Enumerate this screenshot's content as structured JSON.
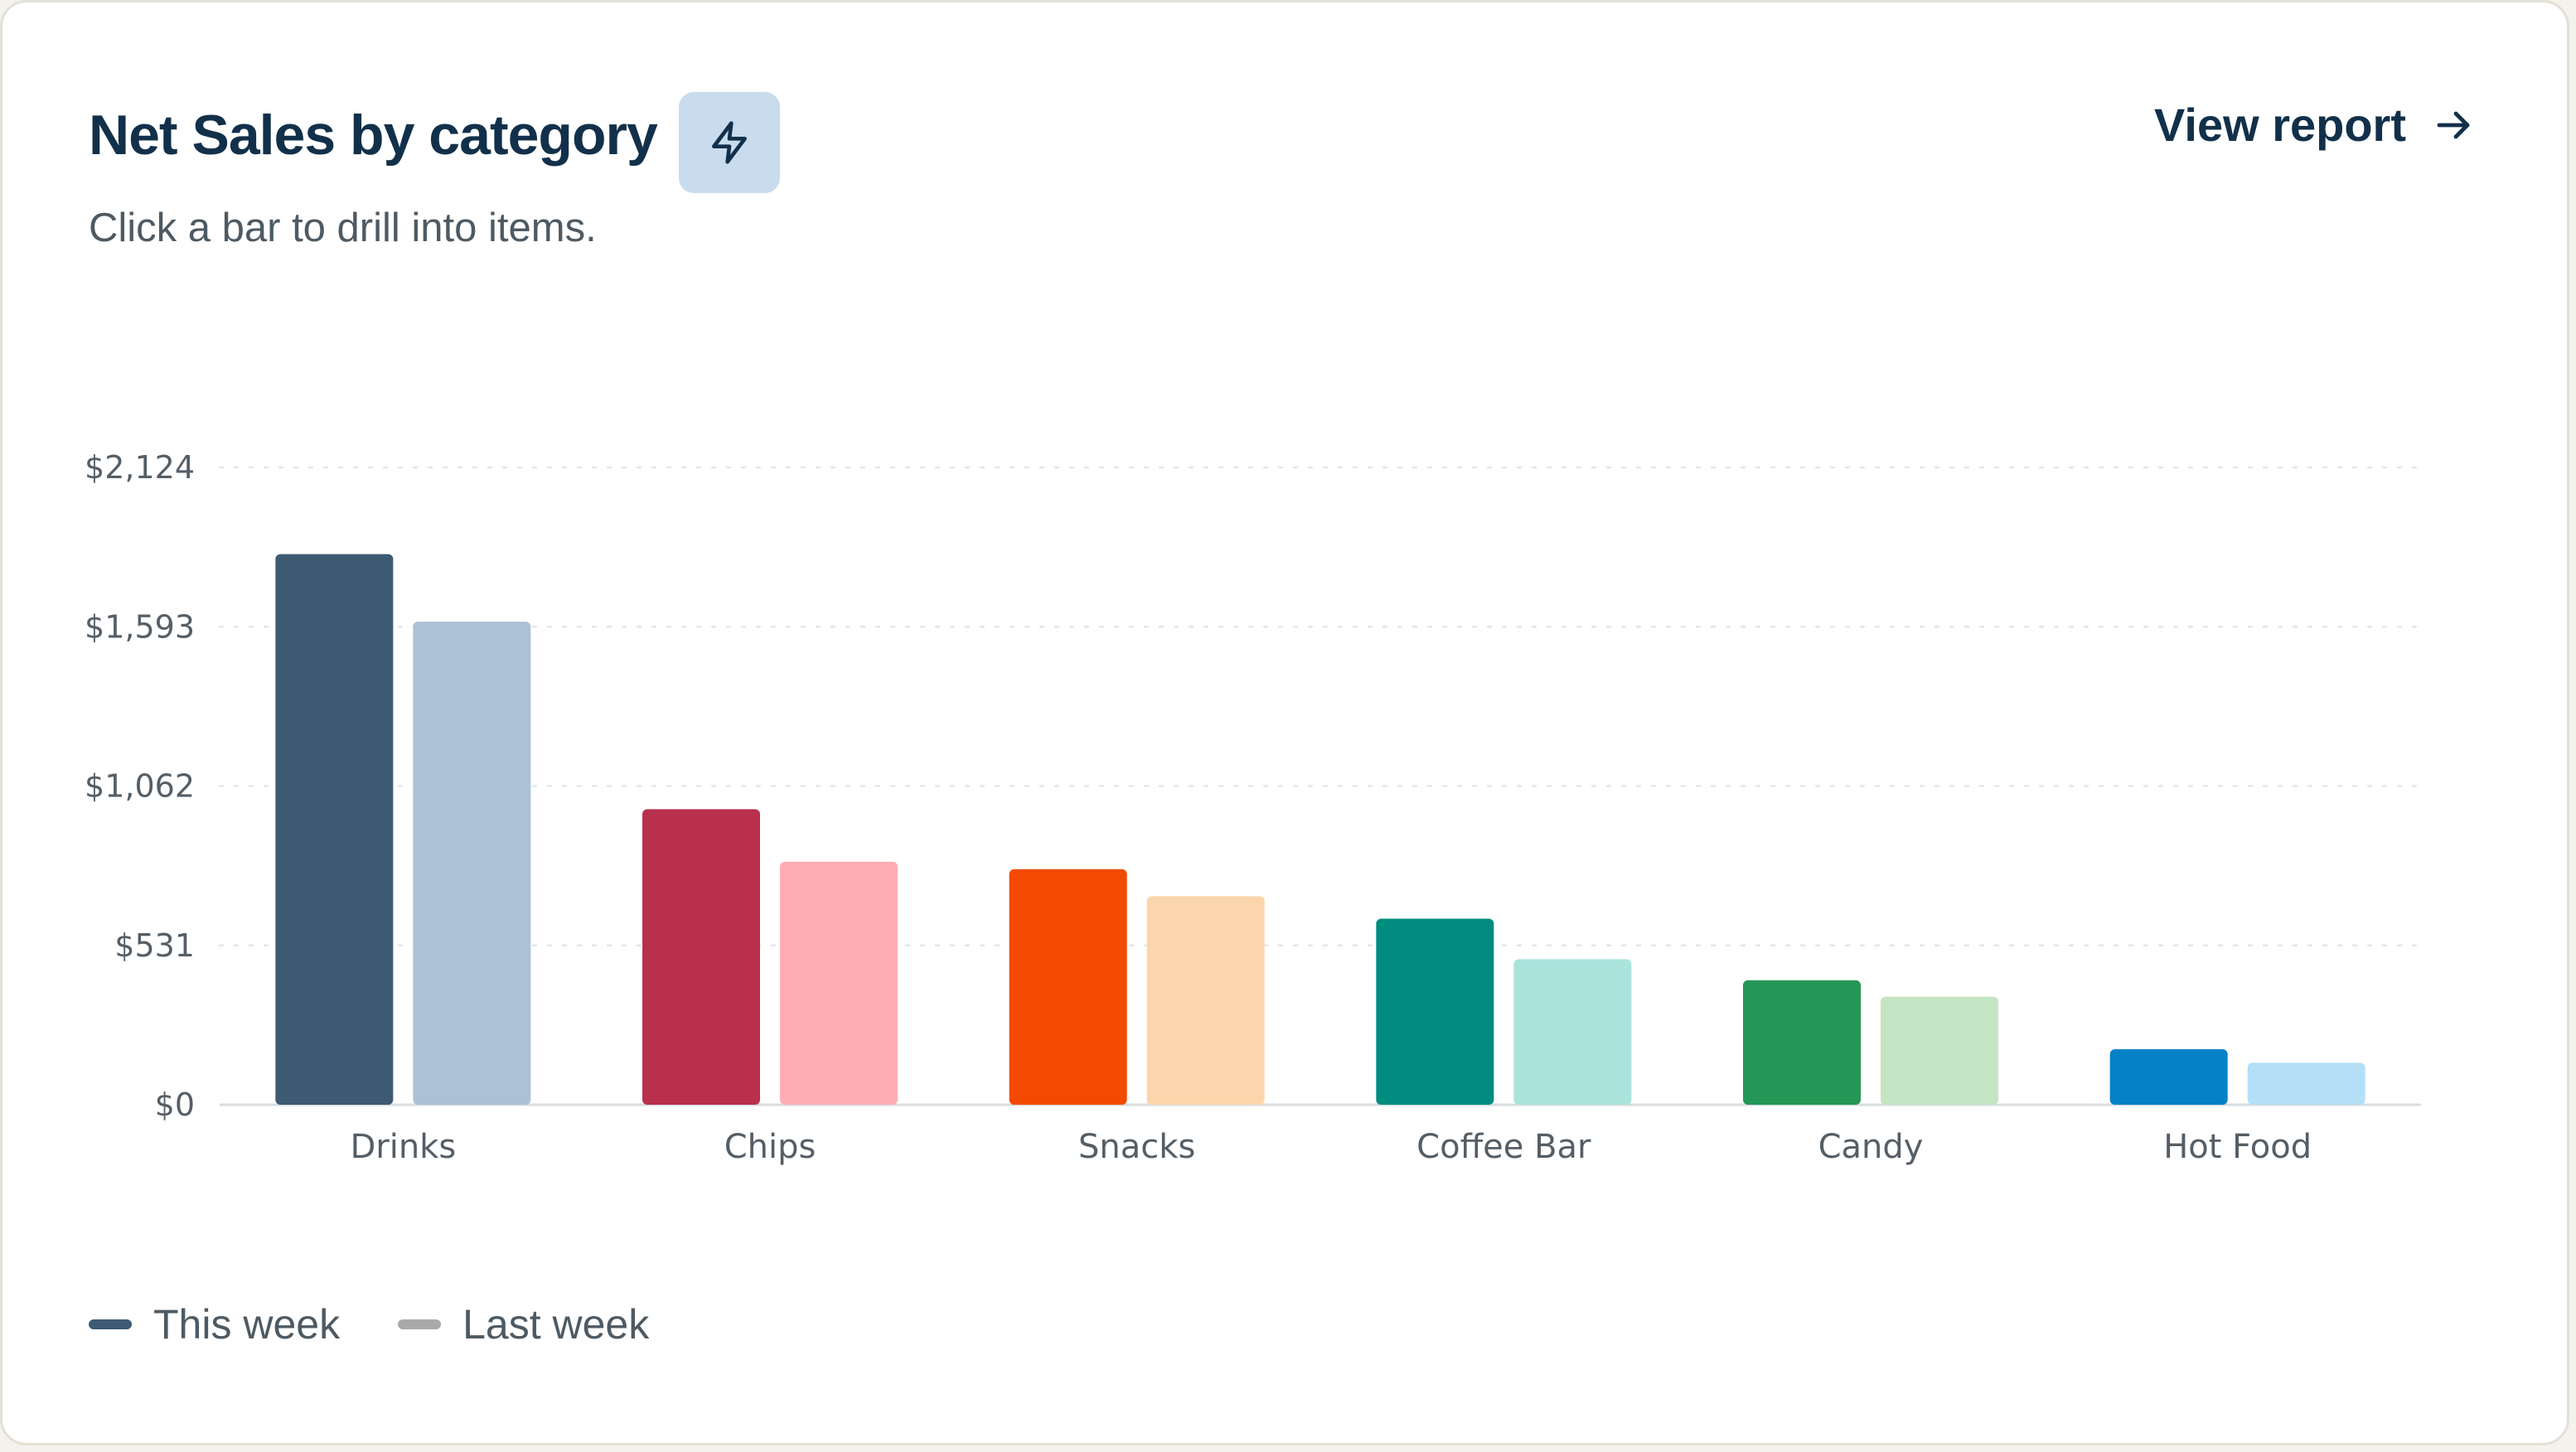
{
  "header": {
    "title": "Net Sales by category",
    "subtitle": "Click a bar to drill into items.",
    "view_report_label": "View report",
    "bolt_icon": "lightning-bolt-icon",
    "arrow_icon": "arrow-right-icon"
  },
  "legend": [
    {
      "label": "This week",
      "color": "#3e5a73"
    },
    {
      "label": "Last week",
      "color": "#a9a9a9"
    }
  ],
  "chart_data": {
    "type": "bar",
    "categories": [
      "Drinks",
      "Chips",
      "Snacks",
      "Coffee Bar",
      "Candy",
      "Hot Food"
    ],
    "series": [
      {
        "name": "This week",
        "values": [
          1835,
          985,
          785,
          620,
          415,
          185
        ]
      },
      {
        "name": "Last week",
        "values": [
          1610,
          810,
          695,
          485,
          360,
          140
        ]
      }
    ],
    "colors": {
      "This week": [
        "#3e5a73",
        "#b8304c",
        "#f24a00",
        "#008c7f",
        "#249756",
        "#0581c8"
      ],
      "Last week": [
        "#acc1d6",
        "#ffacb5",
        "#fbd6ac",
        "#aae4dd",
        "#c3e5c3",
        "#b4dff7"
      ]
    },
    "yticks": [
      "$0",
      "$531",
      "$1,062",
      "$1,593",
      "$2,124"
    ],
    "ytick_values": [
      0,
      531,
      1062,
      1593,
      2124
    ],
    "ylim": [
      0,
      2124
    ],
    "grid": true,
    "legend_position": "bottom-left",
    "xlabel": "",
    "ylabel": ""
  }
}
